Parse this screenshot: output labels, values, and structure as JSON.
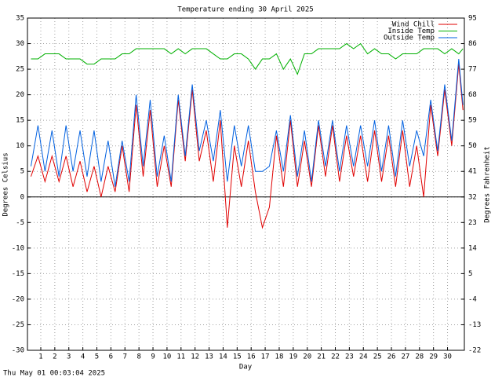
{
  "chart_data": {
    "type": "line",
    "title": "Temperature ending 30 April 2025",
    "x_label": "Day",
    "y_label": "Degrees Celsius",
    "y2_label": "Degrees Fahrenheit",
    "footer": "Thu May 01 00:03:04 2025",
    "grid": true,
    "legend": "top-right",
    "xlim": [
      0.05,
      31.2
    ],
    "xticks": [
      1,
      2,
      3,
      4,
      5,
      6,
      7,
      8,
      9,
      10,
      11,
      12,
      13,
      14,
      15,
      16,
      17,
      18,
      19,
      20,
      21,
      22,
      23,
      24,
      25,
      26,
      27,
      28,
      29,
      30
    ],
    "ylim": [
      -30,
      35
    ],
    "yticks": [
      -30,
      -25,
      -20,
      -15,
      -10,
      -5,
      0,
      5,
      10,
      15,
      20,
      25,
      30,
      35
    ],
    "y2lim": [
      -22,
      95
    ],
    "y2ticks": [
      -22,
      -13,
      -4,
      5,
      14,
      23,
      32,
      41,
      50,
      59,
      68,
      77,
      86,
      95
    ],
    "x": [
      0.3,
      0.8,
      1.3,
      1.8,
      2.3,
      2.8,
      3.3,
      3.8,
      4.3,
      4.8,
      5.3,
      5.8,
      6.3,
      6.8,
      7.3,
      7.8,
      8.3,
      8.8,
      9.3,
      9.8,
      10.3,
      10.8,
      11.3,
      11.8,
      12.3,
      12.8,
      13.3,
      13.8,
      14.3,
      14.8,
      15.3,
      15.8,
      16.3,
      16.8,
      17.3,
      17.8,
      18.3,
      18.8,
      19.3,
      19.8,
      20.3,
      20.8,
      21.3,
      21.8,
      22.3,
      22.8,
      23.3,
      23.8,
      24.3,
      24.8,
      25.3,
      25.8,
      26.3,
      26.8,
      27.3,
      27.8,
      28.3,
      28.8,
      29.3,
      29.8,
      30.3,
      30.8,
      31.1
    ],
    "series": [
      {
        "name": "Wind Chill",
        "color": "#e00000",
        "values": [
          4,
          8,
          3,
          8,
          3,
          8,
          2,
          7,
          1,
          6,
          0,
          6,
          1,
          10,
          1,
          18,
          4,
          17,
          2,
          10,
          2,
          19,
          7,
          21,
          7,
          13,
          3,
          15,
          -6,
          10,
          2,
          11,
          1,
          -6,
          -2,
          12,
          2,
          15,
          2,
          11,
          2,
          14,
          4,
          14,
          3,
          12,
          4,
          12,
          3,
          13,
          3,
          12,
          2,
          13,
          2,
          10,
          0,
          18,
          8,
          21,
          10,
          26,
          17
        ]
      },
      {
        "name": "Inside Temp",
        "color": "#00b000",
        "values": [
          27,
          27,
          28,
          28,
          28,
          27,
          27,
          27,
          26,
          26,
          27,
          27,
          27,
          28,
          28,
          29,
          29,
          29,
          29,
          29,
          28,
          29,
          28,
          29,
          29,
          29,
          28,
          27,
          27,
          28,
          28,
          27,
          25,
          27,
          27,
          28,
          25,
          27,
          24,
          28,
          28,
          29,
          29,
          29,
          29,
          30,
          29,
          30,
          28,
          29,
          28,
          28,
          27,
          28,
          28,
          28,
          29,
          29,
          29,
          28,
          29,
          28,
          29
        ]
      },
      {
        "name": "Outside Temp",
        "color": "#0060e0",
        "values": [
          6,
          14,
          5,
          13,
          4,
          14,
          5,
          13,
          4,
          13,
          3,
          11,
          2,
          11,
          3,
          20,
          6,
          19,
          4,
          12,
          3,
          20,
          8,
          22,
          9,
          15,
          7,
          17,
          3,
          14,
          6,
          14,
          5,
          5,
          6,
          13,
          5,
          16,
          4,
          13,
          3,
          15,
          6,
          15,
          5,
          14,
          6,
          14,
          6,
          15,
          5,
          14,
          4,
          15,
          6,
          13,
          8,
          19,
          9,
          22,
          11,
          27,
          18
        ]
      }
    ]
  }
}
